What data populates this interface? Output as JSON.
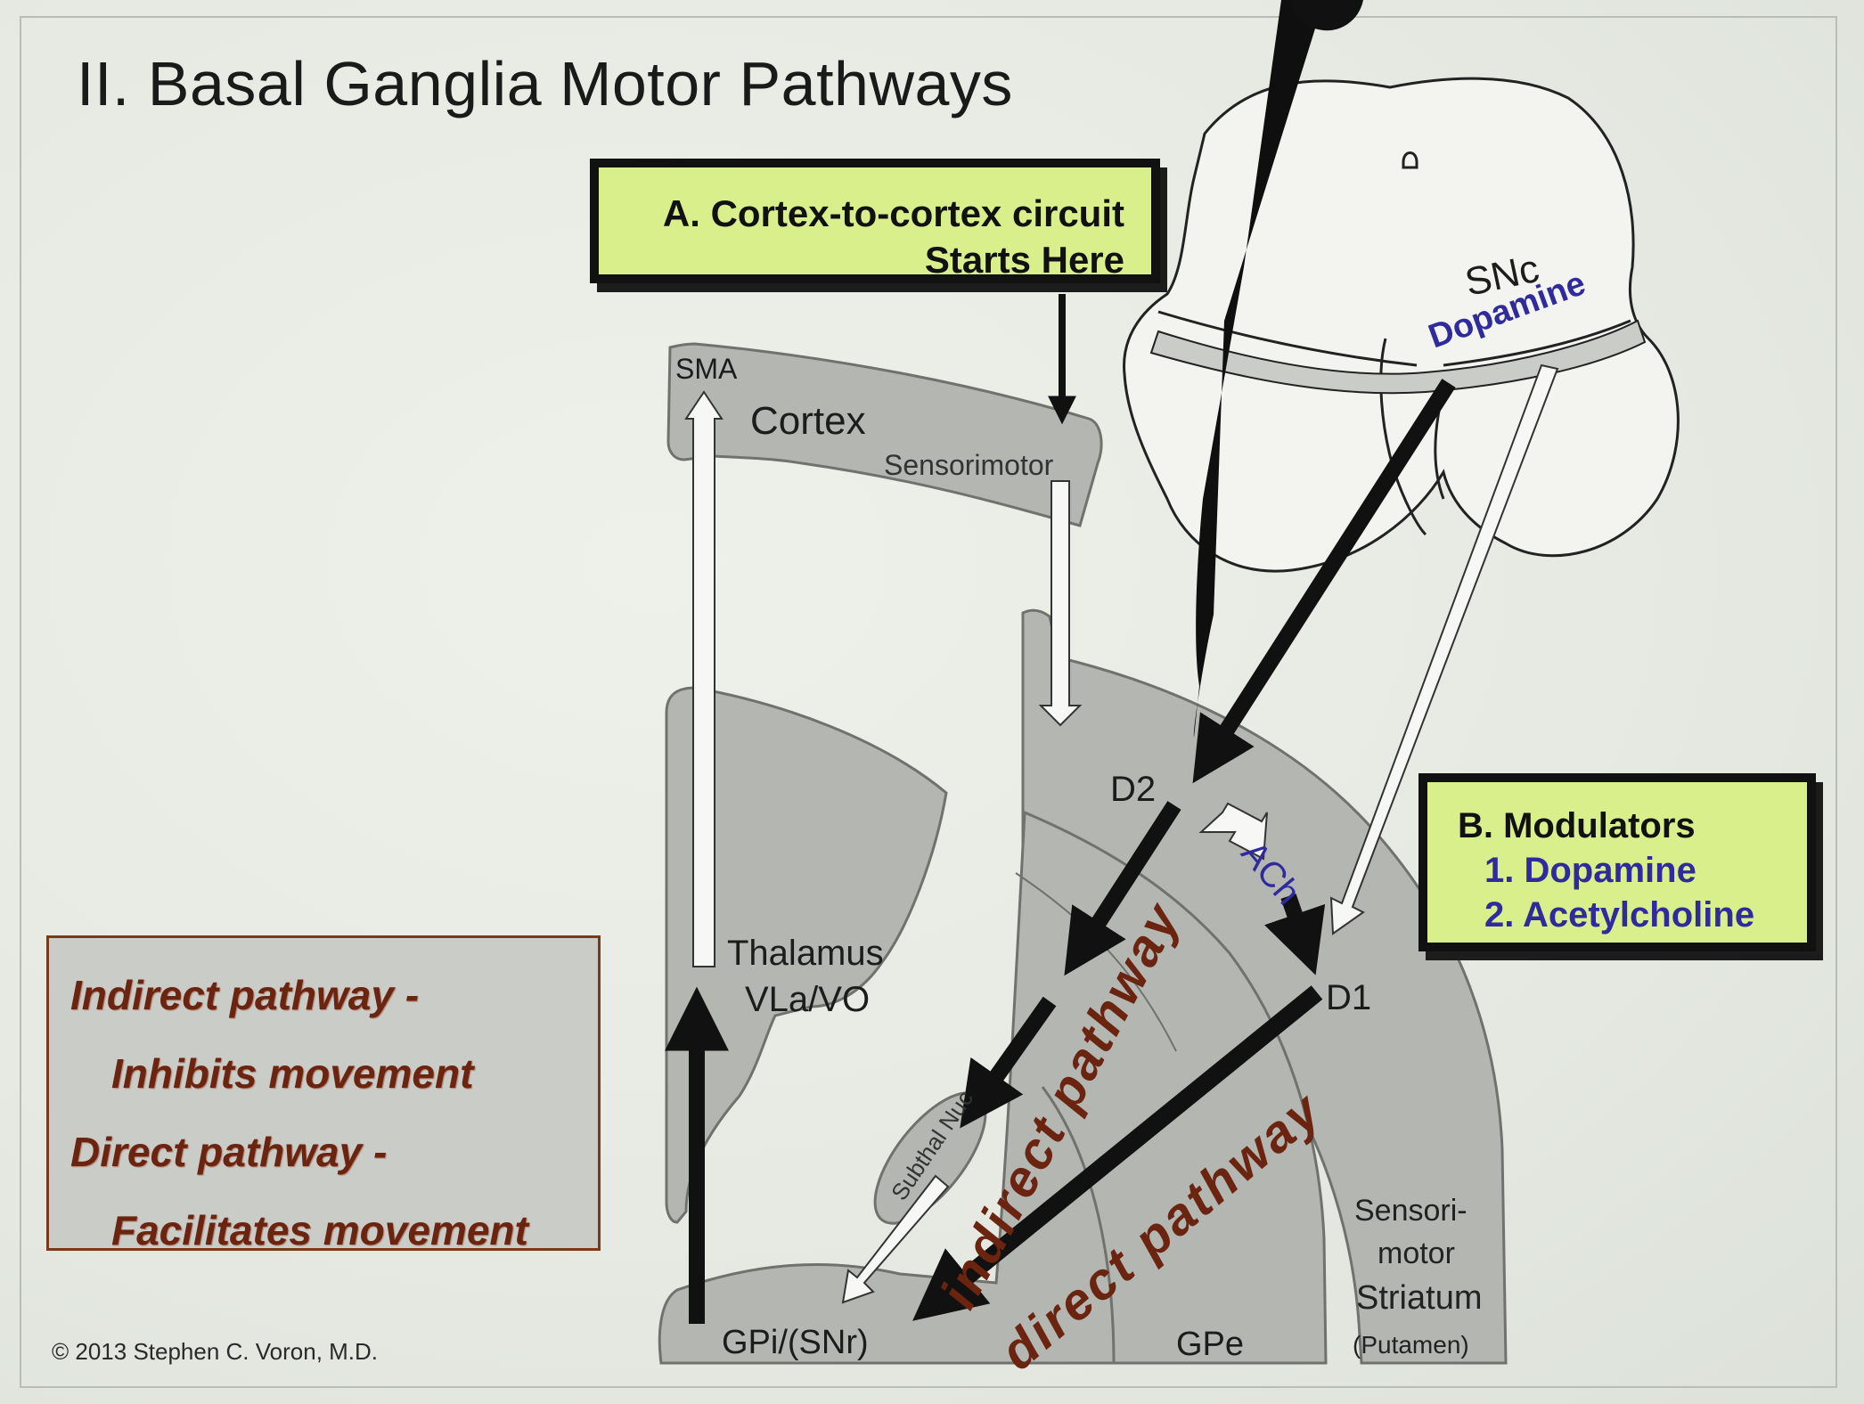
{
  "title": "II. Basal Ganglia Motor Pathways",
  "box_a": {
    "line1": "A. Cortex-to-cortex circuit",
    "line2": "Starts Here"
  },
  "box_b": {
    "heading": "B. Modulators",
    "item1": "1. Dopamine",
    "item2": "2. Acetylcholine"
  },
  "legend": {
    "line1": "Indirect pathway -",
    "line2": "Inhibits movement",
    "line3": "Direct pathway -",
    "line4": "Facilitates movement"
  },
  "copyright": "© 2013 Stephen C. Voron, M.D.",
  "labels": {
    "sma": "SMA",
    "cortex": "Cortex",
    "sensorimotor": "Sensorimotor",
    "snc": "SNc",
    "dopamine": "Dopamine",
    "d2": "D2",
    "d1": "D1",
    "ach": "ACh",
    "thalamus": "Thalamus",
    "vla_vo": "VLa/VO",
    "subthal_nuc": "Subthal Nuc",
    "indirect_pathway": "indirect pathway",
    "direct_pathway": "direct pathway",
    "gpi_snr": "GPi/(SNr)",
    "gpe": "GPe",
    "striatum_l1": "Sensori-",
    "striatum_l2": "motor",
    "striatum_l3": "Striatum",
    "striatum_l4": "(Putamen)"
  },
  "colors": {
    "green_box": "#d8ef8c",
    "region_gray": "#b3b6b1",
    "pathway_text": "#6b2410",
    "modulator_text": "#2f2b9c"
  }
}
